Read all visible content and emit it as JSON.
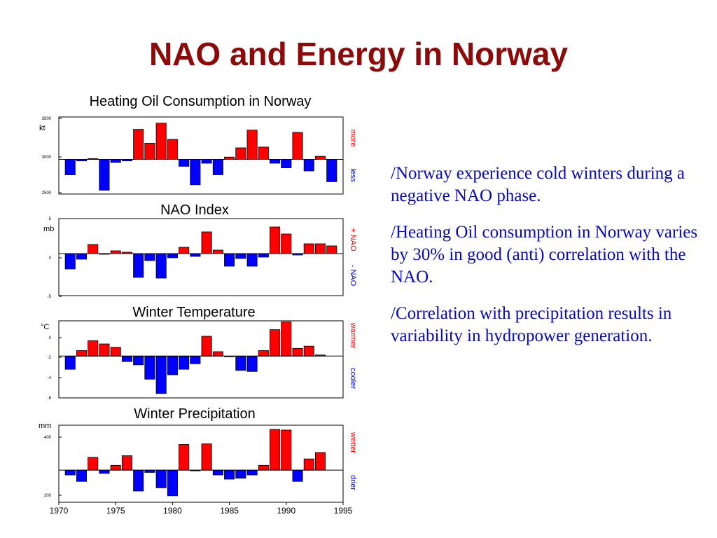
{
  "title": "NAO and Energy in Norway",
  "bullets": [
    "/Norway experience cold winters during a negative NAO phase.",
    "/Heating Oil consumption in Norway varies by 30% in good (anti) correlation with the NAO.",
    "/Correlation with precipitation results in variability in hydropower generation."
  ],
  "colors": {
    "positive": "#ff0000",
    "negative": "#0000ff",
    "title": "#8b0a0a",
    "bullet_text": "#0a0ab4"
  },
  "chart_data": [
    {
      "type": "bar",
      "title": "Heating Oil Consumption in Norway",
      "ylabel": "kt",
      "yticks": [
        "3500",
        "3000",
        "2500"
      ],
      "ylim": [
        2500,
        3500
      ],
      "baseline": 2950,
      "side_labels": {
        "top": "more",
        "bottom": "less"
      },
      "x": [
        1971,
        1972,
        1973,
        1974,
        1975,
        1976,
        1977,
        1978,
        1979,
        1980,
        1981,
        1982,
        1983,
        1984,
        1985,
        1986,
        1987,
        1988,
        1989,
        1990,
        1991,
        1992,
        1993,
        1994
      ],
      "values": [
        2750,
        2930,
        2960,
        2550,
        2910,
        2930,
        3340,
        3160,
        3420,
        3210,
        2860,
        2620,
        2900,
        2750,
        2980,
        3100,
        3330,
        3110,
        2900,
        2840,
        3300,
        2800,
        2990,
        2660
      ]
    },
    {
      "type": "bar",
      "title": "NAO Index",
      "ylabel": "mb",
      "yticks": [
        "5",
        "0",
        "-5"
      ],
      "ylim": [
        -6,
        5
      ],
      "baseline": 0,
      "side_labels": {
        "top": "+ NAO",
        "bottom": "- NAO"
      },
      "x": [
        1971,
        1972,
        1973,
        1974,
        1975,
        1976,
        1977,
        1978,
        1979,
        1980,
        1981,
        1982,
        1983,
        1984,
        1985,
        1986,
        1987,
        1988,
        1989,
        1990,
        1991,
        1992,
        1993,
        1994
      ],
      "values": [
        -2.2,
        -0.8,
        1.3,
        0,
        0.4,
        0.2,
        -3.4,
        -1.0,
        -3.5,
        -0.6,
        0.9,
        -0.4,
        3.1,
        0.5,
        -1.8,
        -0.7,
        -1.8,
        -0.5,
        3.8,
        2.8,
        -0.2,
        1.4,
        1.4,
        1.1
      ]
    },
    {
      "type": "bar",
      "title": "Winter Temperature",
      "ylabel": "°C",
      "yticks": [
        "0",
        "-2",
        "-4",
        "-6"
      ],
      "ylim": [
        -6,
        1
      ],
      "baseline": -2.2,
      "side_labels": {
        "top": "warmer",
        "bottom": "cooler"
      },
      "x": [
        1971,
        1972,
        1973,
        1974,
        1975,
        1976,
        1977,
        1978,
        1979,
        1980,
        1981,
        1982,
        1983,
        1984,
        1985,
        1986,
        1987,
        1988,
        1989,
        1990,
        1991,
        1992,
        1993
      ],
      "values": [
        -3.4,
        -1.7,
        -0.8,
        -1.1,
        -1.4,
        -2.7,
        -3.0,
        -4.3,
        -5.6,
        -3.9,
        -3.4,
        -2.9,
        -0.4,
        -1.8,
        -2.2,
        -3.5,
        -3.6,
        -1.7,
        0.2,
        0.9,
        -1.5,
        -1.3,
        -2.1
      ]
    },
    {
      "type": "bar",
      "title": "Winter Precipitation",
      "ylabel": "mm",
      "yticks": [
        "400",
        "200"
      ],
      "ylim": [
        190,
        430
      ],
      "baseline": 290,
      "side_labels": {
        "top": "wetter",
        "bottom": "drier"
      },
      "xticks": [
        "1970",
        "1975",
        "1980",
        "1985",
        "1990",
        "1995"
      ],
      "x": [
        1971,
        1972,
        1973,
        1974,
        1975,
        1976,
        1977,
        1978,
        1979,
        1980,
        1981,
        1982,
        1983,
        1984,
        1985,
        1986,
        1987,
        1988,
        1989,
        1990,
        1991,
        1992,
        1993
      ],
      "values": [
        275,
        255,
        330,
        280,
        305,
        335,
        225,
        283,
        235,
        210,
        370,
        288,
        372,
        275,
        262,
        265,
        275,
        305,
        417,
        415,
        255,
        325,
        345
      ]
    }
  ]
}
